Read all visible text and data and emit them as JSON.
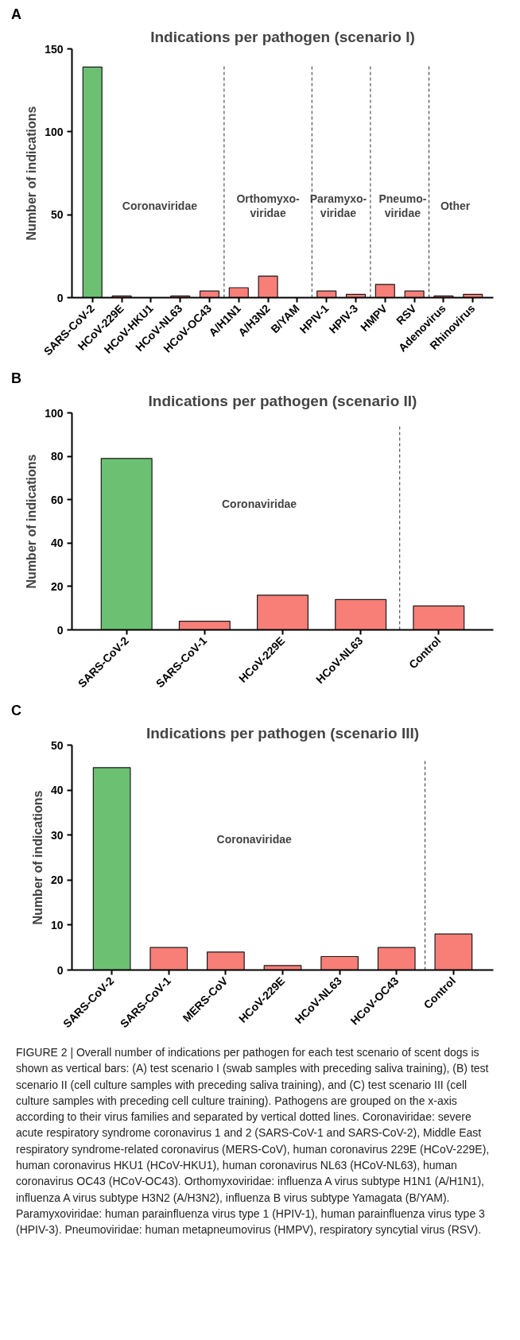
{
  "chart_data": [
    {
      "type": "bar",
      "title": "Indications per pathogen (scenario I)",
      "ylabel": "Number of indications",
      "categories": [
        "SARS-CoV-2",
        "HCoV-229E",
        "HCoV-HKU1",
        "HCoV-NL63",
        "HCoV-OC43",
        "A/H1N1",
        "A/H3N2",
        "B/YAM",
        "HPIV-1",
        "HPIV-3",
        "HMPV",
        "RSV",
        "Adenovirus",
        "Rhinovirus"
      ],
      "values": [
        139,
        1,
        0,
        1,
        4,
        6,
        13,
        0,
        4,
        2,
        8,
        4,
        1,
        2
      ],
      "colors": [
        "#6cc072",
        "#f87e78",
        "#f87e78",
        "#f87e78",
        "#f87e78",
        "#f87e78",
        "#f87e78",
        "#f87e78",
        "#f87e78",
        "#f87e78",
        "#f87e78",
        "#f87e78",
        "#f87e78",
        "#f87e78"
      ],
      "ylim": [
        0,
        150
      ],
      "yticks": [
        0,
        50,
        100,
        150
      ],
      "grid": false,
      "annotations": [
        "A",
        "Coronaviridae",
        "Orthomyxo-\nviridae",
        "Paramyxo-\nviridae",
        "Pneumo-\nviridae",
        "Other"
      ]
    },
    {
      "type": "bar",
      "title": "Indications per pathogen (scenario II)",
      "ylabel": "Number of indications",
      "categories": [
        "SARS-CoV-2",
        "SARS-CoV-1",
        "HCoV-229E",
        "HCoV-NL63",
        "Control"
      ],
      "values": [
        79,
        4,
        16,
        14,
        11
      ],
      "colors": [
        "#6cc072",
        "#f87e78",
        "#f87e78",
        "#f87e78",
        "#f87e78"
      ],
      "ylim": [
        0,
        100
      ],
      "yticks": [
        0,
        20,
        40,
        60,
        80,
        100
      ],
      "grid": false,
      "annotations": [
        "B",
        "Coronaviridae"
      ]
    },
    {
      "type": "bar",
      "title": "Indications per pathogen (scenario III)",
      "ylabel": "Number of indications",
      "categories": [
        "SARS-CoV-2",
        "SARS-CoV-1",
        "MERS-CoV",
        "HCoV-229E",
        "HCoV-NL63",
        "HCoV-OC43",
        "Control"
      ],
      "values": [
        45,
        5,
        4,
        1,
        3,
        5,
        8
      ],
      "colors": [
        "#6cc072",
        "#f87e78",
        "#f87e78",
        "#f87e78",
        "#f87e78",
        "#f87e78",
        "#f87e78"
      ],
      "ylim": [
        0,
        50
      ],
      "yticks": [
        0,
        10,
        20,
        30,
        40,
        50
      ],
      "grid": false,
      "annotations": [
        "C",
        "Coronaviridae",
        "FIGURE 2 | Overall number of indications per pathogen for each test scenario of scent dogs is shown as vertical bars: (A) test scenario I (swab samples with preceding saliva training), (B) test scenario II (cell culture samples with preceding saliva training), and (C) test scenario III (cell culture samples with preceding cell culture training). Pathogens are grouped on the x-axis according to their virus families and separated by vertical dotted lines. Coronaviridae: severe acute respiratory syndrome coronavirus 1 and 2 (SARS-CoV-1 and SARS-CoV-2), Middle East respiratory syndrome-related coronavirus (MERS-CoV), human coronavirus 229E (HCoV-229E), human coronavirus HKU1 (HCoV-HKU1), human coronavirus NL63 (HCoV-NL63), human coronavirus OC43 (HCoV-OC43). Orthomyxoviridae: influenza A virus subtype H1N1 (A/H1N1), influenza A virus subtype H3N2 (A/H3N2), influenza B virus subtype Yamagata (B/YAM). Paramyxoviridae: human parainfluenza virus type 1 (HPIV-1), human parainfluenza virus type 3 (HPIV-3). Pneumoviridae: human metapneumovirus (HMPV), respiratory syncytial virus (RSV)."
      ]
    }
  ]
}
